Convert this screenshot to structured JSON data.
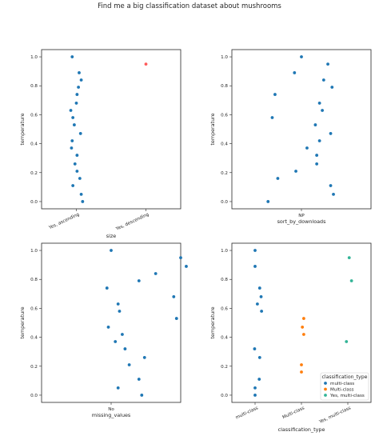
{
  "figure": {
    "title": "Find me a big classification dataset about mushrooms"
  },
  "colors": {
    "blue": "#1f77b4",
    "orange": "#ff7f0e",
    "green": "#2ca02c",
    "pink": "#ff5b5b",
    "teal": "#33b497"
  },
  "chart_data": [
    {
      "type": "scatter",
      "subtype": "strip",
      "xlabel": "size",
      "ylabel": "temperature",
      "ylim": [
        -0.05,
        1.05
      ],
      "yticks": [
        "0.0",
        "0.2",
        "0.4",
        "0.6",
        "0.8",
        "1.0"
      ],
      "categories": [
        "Yes, ascending",
        "Yes, descending"
      ],
      "tick_rotation": 25,
      "points": [
        {
          "cat": 0,
          "jitter": -0.06,
          "y": 1.0,
          "color": "blue"
        },
        {
          "cat": 0,
          "jitter": 0.04,
          "y": 0.89,
          "color": "blue"
        },
        {
          "cat": 0,
          "jitter": 0.07,
          "y": 0.84,
          "color": "blue"
        },
        {
          "cat": 0,
          "jitter": 0.03,
          "y": 0.79,
          "color": "blue"
        },
        {
          "cat": 0,
          "jitter": 0.01,
          "y": 0.74,
          "color": "blue"
        },
        {
          "cat": 0,
          "jitter": 0.0,
          "y": 0.68,
          "color": "blue"
        },
        {
          "cat": 0,
          "jitter": -0.08,
          "y": 0.63,
          "color": "blue"
        },
        {
          "cat": 0,
          "jitter": -0.05,
          "y": 0.58,
          "color": "blue"
        },
        {
          "cat": 0,
          "jitter": -0.03,
          "y": 0.53,
          "color": "blue"
        },
        {
          "cat": 0,
          "jitter": 0.06,
          "y": 0.47,
          "color": "blue"
        },
        {
          "cat": 0,
          "jitter": -0.06,
          "y": 0.42,
          "color": "blue"
        },
        {
          "cat": 0,
          "jitter": -0.07,
          "y": 0.37,
          "color": "blue"
        },
        {
          "cat": 0,
          "jitter": 0.01,
          "y": 0.32,
          "color": "blue"
        },
        {
          "cat": 0,
          "jitter": -0.02,
          "y": 0.26,
          "color": "blue"
        },
        {
          "cat": 0,
          "jitter": 0.01,
          "y": 0.21,
          "color": "blue"
        },
        {
          "cat": 0,
          "jitter": 0.05,
          "y": 0.16,
          "color": "blue"
        },
        {
          "cat": 0,
          "jitter": -0.05,
          "y": 0.11,
          "color": "blue"
        },
        {
          "cat": 0,
          "jitter": 0.07,
          "y": 0.05,
          "color": "blue"
        },
        {
          "cat": 0,
          "jitter": 0.09,
          "y": 0.0,
          "color": "blue"
        },
        {
          "cat": 1,
          "jitter": 0.0,
          "y": 0.95,
          "color": "pink"
        }
      ]
    },
    {
      "type": "scatter",
      "subtype": "strip",
      "xlabel": "sort_by_downloads",
      "ylabel": "temperature",
      "ylim": [
        -0.05,
        1.05
      ],
      "yticks": [
        "0.0",
        "0.2",
        "0.4",
        "0.6",
        "0.8",
        "1.0"
      ],
      "categories": [
        "NP"
      ],
      "tick_rotation": 0,
      "points": [
        {
          "cat": 0,
          "jitter": 0.0,
          "y": 1.0,
          "color": "blue"
        },
        {
          "cat": 0,
          "jitter": 0.19,
          "y": 0.95,
          "color": "blue"
        },
        {
          "cat": 0,
          "jitter": -0.05,
          "y": 0.89,
          "color": "blue"
        },
        {
          "cat": 0,
          "jitter": 0.16,
          "y": 0.84,
          "color": "blue"
        },
        {
          "cat": 0,
          "jitter": 0.22,
          "y": 0.79,
          "color": "blue"
        },
        {
          "cat": 0,
          "jitter": -0.19,
          "y": 0.74,
          "color": "blue"
        },
        {
          "cat": 0,
          "jitter": 0.13,
          "y": 0.68,
          "color": "blue"
        },
        {
          "cat": 0,
          "jitter": 0.15,
          "y": 0.63,
          "color": "blue"
        },
        {
          "cat": 0,
          "jitter": -0.21,
          "y": 0.58,
          "color": "blue"
        },
        {
          "cat": 0,
          "jitter": 0.1,
          "y": 0.53,
          "color": "blue"
        },
        {
          "cat": 0,
          "jitter": 0.21,
          "y": 0.47,
          "color": "blue"
        },
        {
          "cat": 0,
          "jitter": 0.13,
          "y": 0.42,
          "color": "blue"
        },
        {
          "cat": 0,
          "jitter": 0.04,
          "y": 0.37,
          "color": "blue"
        },
        {
          "cat": 0,
          "jitter": 0.11,
          "y": 0.32,
          "color": "blue"
        },
        {
          "cat": 0,
          "jitter": 0.11,
          "y": 0.26,
          "color": "blue"
        },
        {
          "cat": 0,
          "jitter": -0.04,
          "y": 0.21,
          "color": "blue"
        },
        {
          "cat": 0,
          "jitter": -0.17,
          "y": 0.16,
          "color": "blue"
        },
        {
          "cat": 0,
          "jitter": 0.21,
          "y": 0.11,
          "color": "blue"
        },
        {
          "cat": 0,
          "jitter": 0.23,
          "y": 0.05,
          "color": "blue"
        },
        {
          "cat": 0,
          "jitter": -0.24,
          "y": 0.0,
          "color": "blue"
        }
      ]
    },
    {
      "type": "scatter",
      "subtype": "strip",
      "xlabel": "missing_values",
      "ylabel": "temperature",
      "ylim": [
        -0.05,
        1.05
      ],
      "yticks": [
        "0.0",
        "0.2",
        "0.4",
        "0.6",
        "0.8",
        "1.0"
      ],
      "categories": [
        "No"
      ],
      "tick_rotation": 0,
      "points": [
        {
          "cat": 0,
          "jitter": 0.0,
          "y": 1.0,
          "color": "blue"
        },
        {
          "cat": 0,
          "jitter": 0.5,
          "y": 0.95,
          "color": "blue"
        },
        {
          "cat": 0,
          "jitter": 0.54,
          "y": 0.89,
          "color": "blue"
        },
        {
          "cat": 0,
          "jitter": 0.32,
          "y": 0.84,
          "color": "blue"
        },
        {
          "cat": 0,
          "jitter": 0.2,
          "y": 0.79,
          "color": "blue"
        },
        {
          "cat": 0,
          "jitter": -0.03,
          "y": 0.74,
          "color": "blue"
        },
        {
          "cat": 0,
          "jitter": 0.45,
          "y": 0.68,
          "color": "blue"
        },
        {
          "cat": 0,
          "jitter": 0.05,
          "y": 0.63,
          "color": "blue"
        },
        {
          "cat": 0,
          "jitter": 0.06,
          "y": 0.58,
          "color": "blue"
        },
        {
          "cat": 0,
          "jitter": 0.47,
          "y": 0.53,
          "color": "blue"
        },
        {
          "cat": 0,
          "jitter": -0.02,
          "y": 0.47,
          "color": "blue"
        },
        {
          "cat": 0,
          "jitter": 0.08,
          "y": 0.42,
          "color": "blue"
        },
        {
          "cat": 0,
          "jitter": 0.03,
          "y": 0.37,
          "color": "blue"
        },
        {
          "cat": 0,
          "jitter": 0.1,
          "y": 0.32,
          "color": "blue"
        },
        {
          "cat": 0,
          "jitter": 0.24,
          "y": 0.26,
          "color": "blue"
        },
        {
          "cat": 0,
          "jitter": 0.13,
          "y": 0.21,
          "color": "blue"
        },
        {
          "cat": 0,
          "jitter": 0.2,
          "y": 0.11,
          "color": "blue"
        },
        {
          "cat": 0,
          "jitter": 0.05,
          "y": 0.05,
          "color": "blue"
        },
        {
          "cat": 0,
          "jitter": 0.22,
          "y": 0.0,
          "color": "blue"
        }
      ]
    },
    {
      "type": "scatter",
      "subtype": "strip",
      "xlabel": "classification_type",
      "ylabel": "temperature",
      "ylim": [
        -0.05,
        1.05
      ],
      "yticks": [
        "0.0",
        "0.2",
        "0.4",
        "0.6",
        "0.8",
        "1.0"
      ],
      "categories": [
        "multi-class",
        "Multi-class",
        "Yes, multi-class"
      ],
      "tick_rotation": 25,
      "legend": {
        "title": "classification_type",
        "position": "lower right",
        "entries": [
          {
            "label": "multi-class",
            "color": "blue"
          },
          {
            "label": "Multi-class",
            "color": "orange"
          },
          {
            "label": "Yes, multi-class",
            "color": "teal"
          }
        ]
      },
      "points": [
        {
          "cat": 0,
          "jitter": 0.0,
          "y": 1.0,
          "color": "blue"
        },
        {
          "cat": 0,
          "jitter": 0.0,
          "y": 0.89,
          "color": "blue"
        },
        {
          "cat": 0,
          "jitter": 0.1,
          "y": 0.74,
          "color": "blue"
        },
        {
          "cat": 0,
          "jitter": 0.13,
          "y": 0.68,
          "color": "blue"
        },
        {
          "cat": 0,
          "jitter": 0.05,
          "y": 0.63,
          "color": "blue"
        },
        {
          "cat": 0,
          "jitter": 0.14,
          "y": 0.58,
          "color": "blue"
        },
        {
          "cat": 0,
          "jitter": -0.01,
          "y": 0.32,
          "color": "blue"
        },
        {
          "cat": 0,
          "jitter": 0.1,
          "y": 0.26,
          "color": "blue"
        },
        {
          "cat": 0,
          "jitter": 0.09,
          "y": 0.11,
          "color": "blue"
        },
        {
          "cat": 0,
          "jitter": 0.0,
          "y": 0.05,
          "color": "blue"
        },
        {
          "cat": 0,
          "jitter": 0.0,
          "y": 0.0,
          "color": "blue"
        },
        {
          "cat": 1,
          "jitter": 0.05,
          "y": 0.53,
          "color": "orange"
        },
        {
          "cat": 1,
          "jitter": 0.02,
          "y": 0.47,
          "color": "orange"
        },
        {
          "cat": 1,
          "jitter": 0.05,
          "y": 0.42,
          "color": "orange"
        },
        {
          "cat": 1,
          "jitter": 0.0,
          "y": 0.21,
          "color": "orange"
        },
        {
          "cat": 1,
          "jitter": 0.0,
          "y": 0.16,
          "color": "orange"
        },
        {
          "cat": 2,
          "jitter": 0.03,
          "y": 0.95,
          "color": "teal"
        },
        {
          "cat": 2,
          "jitter": 0.08,
          "y": 0.79,
          "color": "teal"
        },
        {
          "cat": 2,
          "jitter": -0.03,
          "y": 0.37,
          "color": "teal"
        }
      ]
    }
  ]
}
